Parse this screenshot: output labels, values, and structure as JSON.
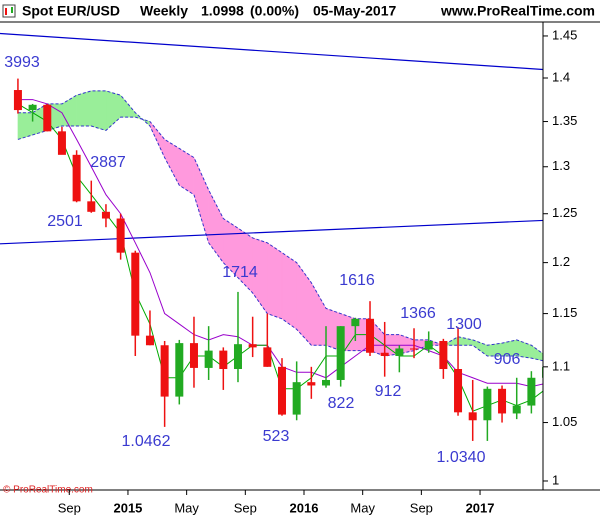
{
  "chart_data": {
    "type": "candlestick",
    "header": {
      "symbol": "Spot EUR/USD",
      "period": "Weekly",
      "last": "1.0998",
      "change": "(0.00%)",
      "date": "05-May-2017",
      "site": "www.ProRealTime.com"
    },
    "copyright": "© ProRealTime.com",
    "categories": [
      null,
      null,
      null,
      null,
      "Sep",
      null,
      null,
      null,
      "2015",
      null,
      null,
      null,
      "May",
      null,
      null,
      null,
      "Sep",
      null,
      null,
      null,
      "2016",
      null,
      null,
      null,
      "May",
      null,
      null,
      null,
      "Sep",
      null,
      null,
      null,
      "2017",
      null,
      null,
      null,
      null
    ],
    "open": [
      1.386,
      1.363,
      1.369,
      1.339,
      1.313,
      1.263,
      1.252,
      1.245,
      1.21,
      1.129,
      1.12,
      1.073,
      1.122,
      1.099,
      1.115,
      1.098,
      1.121,
      1.118,
      1.1,
      1.057,
      1.086,
      1.083,
      1.088,
      1.138,
      1.145,
      1.113,
      1.11,
      1.117,
      1.116,
      1.124,
      1.098,
      1.059,
      1.052,
      1.08,
      1.058,
      1.065,
      1.09
    ],
    "high": [
      1.3993,
      1.37,
      1.37,
      1.344,
      1.318,
      1.285,
      1.26,
      1.25,
      1.212,
      1.153,
      1.124,
      1.125,
      1.147,
      1.138,
      1.118,
      1.171,
      1.147,
      1.15,
      1.108,
      1.105,
      1.1,
      1.138,
      1.138,
      1.146,
      1.162,
      1.142,
      1.12,
      1.136,
      1.133,
      1.126,
      1.137,
      1.088,
      1.082,
      1.083,
      1.09,
      1.096,
      1.1
    ],
    "low": [
      1.359,
      1.35,
      1.339,
      1.315,
      1.262,
      1.251,
      1.236,
      1.203,
      1.11,
      1.12,
      1.0462,
      1.066,
      1.081,
      1.088,
      1.079,
      1.086,
      1.109,
      1.1,
      1.056,
      1.052,
      1.071,
      1.081,
      1.082,
      1.124,
      1.11,
      1.091,
      1.095,
      1.108,
      1.113,
      1.089,
      1.056,
      1.034,
      1.034,
      1.05,
      1.053,
      1.058,
      1.088
    ],
    "close": [
      1.363,
      1.369,
      1.339,
      1.313,
      1.263,
      1.252,
      1.245,
      1.21,
      1.129,
      1.12,
      1.073,
      1.122,
      1.099,
      1.115,
      1.098,
      1.121,
      1.118,
      1.1,
      1.057,
      1.086,
      1.083,
      1.088,
      1.138,
      1.145,
      1.113,
      1.11,
      1.117,
      1.116,
      1.124,
      1.098,
      1.059,
      1.052,
      1.08,
      1.058,
      1.065,
      1.09,
      1.0998
    ],
    "up_color": "#22aa22",
    "down_color": "#ee1111",
    "lines": [
      {
        "color": "#9900cc",
        "values": [
          1.375,
          1.375,
          1.37,
          1.36,
          1.33,
          1.3,
          1.27,
          1.25,
          1.22,
          1.19,
          1.15,
          1.14,
          1.13,
          1.125,
          1.13,
          1.128,
          1.12,
          1.12,
          1.1,
          1.095,
          1.095,
          1.09,
          1.1,
          1.11,
          1.12,
          1.12,
          1.12,
          1.12,
          1.115,
          1.11,
          1.095,
          1.09,
          1.085,
          1.085,
          1.085,
          1.082,
          1.085
        ]
      },
      {
        "color": "#00aa00",
        "values": [
          1.37,
          1.36,
          1.35,
          1.33,
          1.29,
          1.27,
          1.25,
          1.23,
          1.17,
          1.14,
          1.09,
          1.09,
          1.11,
          1.11,
          1.1,
          1.11,
          1.12,
          1.12,
          1.08,
          1.08,
          1.09,
          1.11,
          1.11,
          1.13,
          1.13,
          1.12,
          1.11,
          1.11,
          1.12,
          1.11,
          1.09,
          1.06,
          1.065,
          1.07,
          1.065,
          1.07,
          1.08
        ]
      }
    ],
    "cloud": {
      "span_a": [
        1.36,
        1.36,
        1.37,
        1.37,
        1.38,
        1.385,
        1.385,
        1.38,
        1.36,
        1.345,
        1.31,
        1.28,
        1.27,
        1.22,
        1.2,
        1.185,
        1.17,
        1.15,
        1.145,
        1.135,
        1.12,
        1.12,
        1.115,
        1.115,
        1.115,
        1.11,
        1.112,
        1.115,
        1.12,
        1.12,
        1.128,
        1.125,
        1.12,
        1.122,
        1.125,
        1.12,
        1.11
      ],
      "span_b": [
        1.33,
        1.335,
        1.34,
        1.345,
        1.345,
        1.345,
        1.34,
        1.355,
        1.355,
        1.35,
        1.33,
        1.32,
        1.31,
        1.275,
        1.245,
        1.235,
        1.225,
        1.22,
        1.21,
        1.2,
        1.18,
        1.155,
        1.15,
        1.145,
        1.145,
        1.13,
        1.13,
        1.125,
        1.125,
        1.12,
        1.12,
        1.12,
        1.11,
        1.11,
        1.11,
        1.108,
        1.105
      ],
      "up_color": "#99ee99",
      "down_color": "#ff99dd",
      "edge_color": "#3333cc"
    },
    "trendlines": [
      {
        "color": "#0000cc",
        "values": [
          1.453,
          1.41
        ]
      },
      {
        "color": "#0000cc",
        "values": [
          1.219,
          1.243
        ]
      }
    ],
    "annotations": [
      "3993",
      "2887",
      "2501",
      "1714",
      "1616",
      "1366",
      "1300",
      "906",
      "912",
      "822",
      "523",
      "1.0462",
      "1.0340"
    ],
    "ylim": [
      0.9925,
      1.467
    ],
    "yticks": [
      1.45,
      1.4,
      1.35,
      1.3,
      1.25,
      1.2,
      1.15,
      1.1,
      1.05,
      1
    ],
    "log_y": true,
    "grid": false
  }
}
